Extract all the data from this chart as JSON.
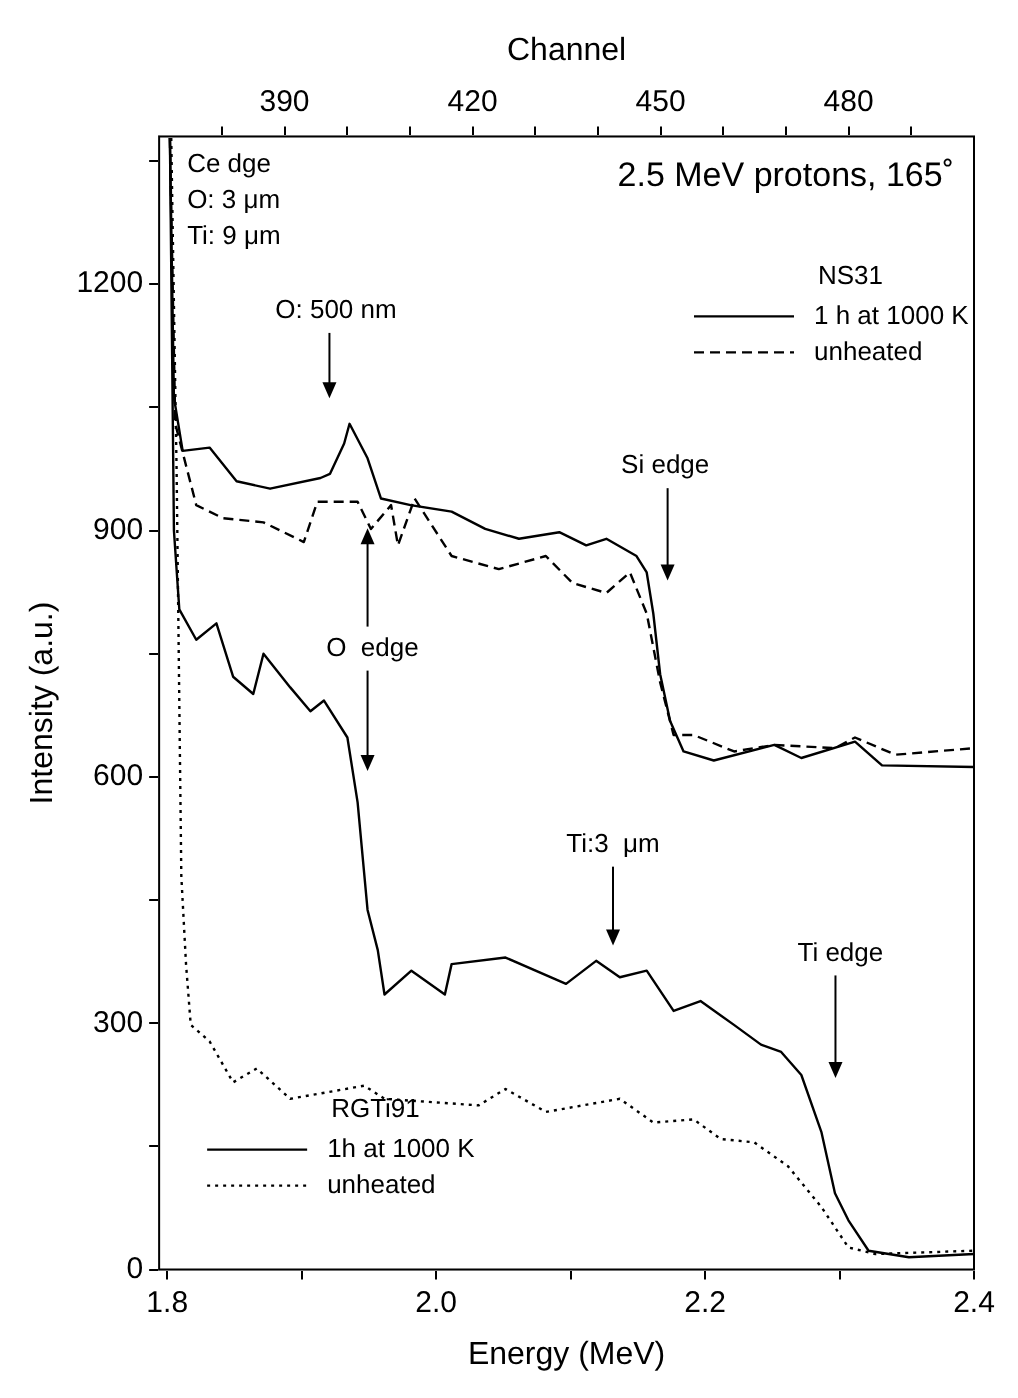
{
  "chart_data": {
    "type": "line",
    "title": "2.5 MeV protons, 165˚",
    "xlabel": "Energy (MeV)",
    "ylabel": "Intensity (a.u.)",
    "x2label": "Channel",
    "xlim": [
      1.794,
      2.4
    ],
    "xticks": [
      1.8,
      {
        "value": 1.9,
        "label": null
      },
      {
        "value": 2,
        "label": "2.0"
      },
      {
        "value": 2.1,
        "label": null
      },
      2.2,
      {
        "value": 2.3,
        "label": null
      },
      2.4
    ],
    "x2lim": [
      370,
      500
    ],
    "x2ticks": [
      {
        "value": 380,
        "label": null
      },
      390,
      {
        "value": 400,
        "label": null
      },
      {
        "value": 410,
        "label": null
      },
      420,
      {
        "value": 430,
        "label": null
      },
      {
        "value": 440,
        "label": null
      },
      450,
      {
        "value": 460,
        "label": null
      },
      {
        "value": 470,
        "label": null
      },
      480,
      {
        "value": 490,
        "label": null
      }
    ],
    "ylim": [
      0,
      1380
    ],
    "yticks": [
      0,
      {
        "value": 150,
        "label": null
      },
      300,
      {
        "value": 450,
        "label": null
      },
      600,
      {
        "value": 750,
        "label": null
      },
      900,
      {
        "value": 1050,
        "label": null
      },
      1200,
      {
        "value": 1350,
        "label": null
      }
    ],
    "grid": false,
    "legend": "right",
    "marker": "none",
    "annotations": [
      "Ce dge",
      "O: 3 μm",
      "Ti: 9 μm",
      "NS31",
      "RGTi91",
      "O: 500 nm",
      {
        "text": "O  edge",
        "x": 1.949,
        "y": 910
      },
      "Si edge",
      "Ti:3  μm",
      "Ti edge"
    ],
    "series": [
      {
        "name": "1 h at 1000 K",
        "color": "#000000",
        "line_style": "solid",
        "x": [
          1.802,
          1.805,
          1.8115,
          1.8315,
          1.8516,
          1.8765,
          1.914,
          1.921,
          1.9316,
          1.9356,
          1.949,
          1.959,
          1.981,
          2.0115,
          2.0365,
          2.0616,
          2.0916,
          2.1116,
          2.1266,
          2.149,
          2.1566,
          2.1615,
          2.1666,
          2.174,
          2.184,
          2.2065,
          2.2515,
          2.2716,
          2.3115,
          2.3316,
          2.4
        ],
        "values": [
          1378,
          1062,
          997,
          1001,
          960,
          951,
          964,
          969,
          1006,
          1030,
          988,
          939,
          931,
          923,
          902,
          890,
          898,
          882,
          890,
          869,
          849,
          799,
          725,
          668,
          631,
          620,
          639,
          623,
          643,
          614,
          612
        ]
      },
      {
        "name": "unheated",
        "color": "#000000",
        "line_style": "dashed",
        "x": [
          1.802,
          1.806,
          1.8216,
          1.8415,
          1.8716,
          1.9016,
          1.9116,
          1.9416,
          1.9515,
          1.9665,
          1.9716,
          1.984,
          2.0115,
          2.0466,
          2.0816,
          2.1015,
          2.1266,
          2.1441,
          2.1566,
          2.1666,
          2.1766,
          2.1915,
          2.2216,
          2.2515,
          2.2965,
          2.3115,
          2.3415,
          2.4
        ],
        "values": [
          1378,
          1030,
          931,
          915,
          910,
          886,
          935,
          935,
          902,
          931,
          882,
          939,
          869,
          853,
          869,
          836,
          824,
          849,
          799,
          715,
          651,
          651,
          631,
          639,
          635,
          648,
          627,
          635
        ]
      },
      {
        "name": "1h at 1000 K",
        "color": "#000000",
        "line_style": "solid",
        "x": [
          1.802,
          1.805,
          1.809,
          1.8216,
          1.8366,
          1.849,
          1.864,
          1.8716,
          1.8915,
          1.9065,
          1.9166,
          1.934,
          1.9416,
          1.949,
          1.9566,
          1.9616,
          1.9816,
          2.0065,
          2.0115,
          2.0516,
          2.0966,
          2.119,
          2.1366,
          2.1566,
          2.1766,
          2.1966,
          2.2215,
          2.2416,
          2.2566,
          2.2716,
          2.2866,
          2.2966,
          2.3066,
          2.3216,
          2.3516,
          2.4
        ],
        "values": [
          1378,
          900,
          804,
          767,
          787,
          722,
          701,
          750,
          709,
          680,
          693,
          648,
          569,
          438,
          389,
          335,
          364,
          335,
          372,
          380,
          348,
          376,
          356,
          364,
          315,
          327,
          298,
          274,
          265,
          237,
          167,
          93,
          60,
          23,
          15,
          19
        ]
      },
      {
        "name": "unheated",
        "color": "#000000",
        "line_style": "dotted",
        "x": [
          1.803,
          1.807,
          1.8105,
          1.814,
          1.8175,
          1.8315,
          1.849,
          1.8666,
          1.8915,
          1.9466,
          1.9616,
          2.0316,
          2.0516,
          2.0816,
          2.1366,
          2.1616,
          2.1915,
          2.2116,
          2.2365,
          2.2616,
          2.2866,
          2.3066,
          2.3266,
          2.4
        ],
        "values": [
          1378,
          972,
          479,
          372,
          298,
          278,
          228,
          245,
          208,
          224,
          208,
          200,
          220,
          192,
          208,
          179,
          183,
          159,
          155,
          126,
          76,
          27,
          19,
          23
        ]
      }
    ]
  }
}
